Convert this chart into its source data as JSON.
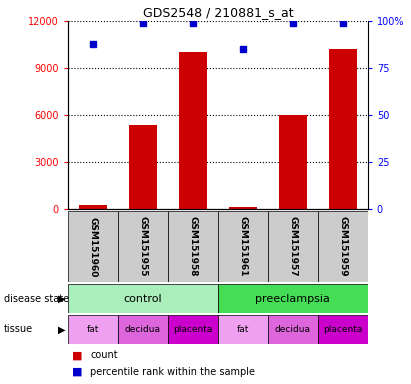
{
  "title": "GDS2548 / 210881_s_at",
  "samples": [
    "GSM151960",
    "GSM151955",
    "GSM151958",
    "GSM151961",
    "GSM151957",
    "GSM151959"
  ],
  "bar_values": [
    300,
    5400,
    10000,
    130,
    6000,
    10200
  ],
  "percentile_values": [
    88,
    99,
    99,
    85,
    99,
    99
  ],
  "bar_color": "#cc0000",
  "dot_color": "#0000cc",
  "ylim_left": [
    0,
    12000
  ],
  "ylim_right": [
    0,
    100
  ],
  "yticks_left": [
    0,
    3000,
    6000,
    9000,
    12000
  ],
  "yticks_right": [
    0,
    25,
    50,
    75,
    100
  ],
  "ytick_labels_right": [
    "0",
    "25",
    "50",
    "75",
    "100%"
  ],
  "disease_state": [
    {
      "label": "control",
      "span": [
        0,
        3
      ],
      "color": "#aaeebb"
    },
    {
      "label": "preeclampsia",
      "span": [
        3,
        6
      ],
      "color": "#44dd55"
    }
  ],
  "tissue": [
    {
      "label": "fat",
      "span": [
        0,
        1
      ],
      "color": "#f0a0f0"
    },
    {
      "label": "decidua",
      "span": [
        1,
        2
      ],
      "color": "#dd66dd"
    },
    {
      "label": "placenta",
      "span": [
        2,
        3
      ],
      "color": "#cc00cc"
    },
    {
      "label": "fat",
      "span": [
        3,
        4
      ],
      "color": "#f0a0f0"
    },
    {
      "label": "decidua",
      "span": [
        4,
        5
      ],
      "color": "#dd66dd"
    },
    {
      "label": "placenta",
      "span": [
        5,
        6
      ],
      "color": "#cc00cc"
    }
  ],
  "legend_count_color": "#cc0000",
  "legend_dot_color": "#0000cc",
  "background_color": "#ffffff",
  "plot_bg_color": "#ffffff",
  "sample_label_bg": "#cccccc"
}
